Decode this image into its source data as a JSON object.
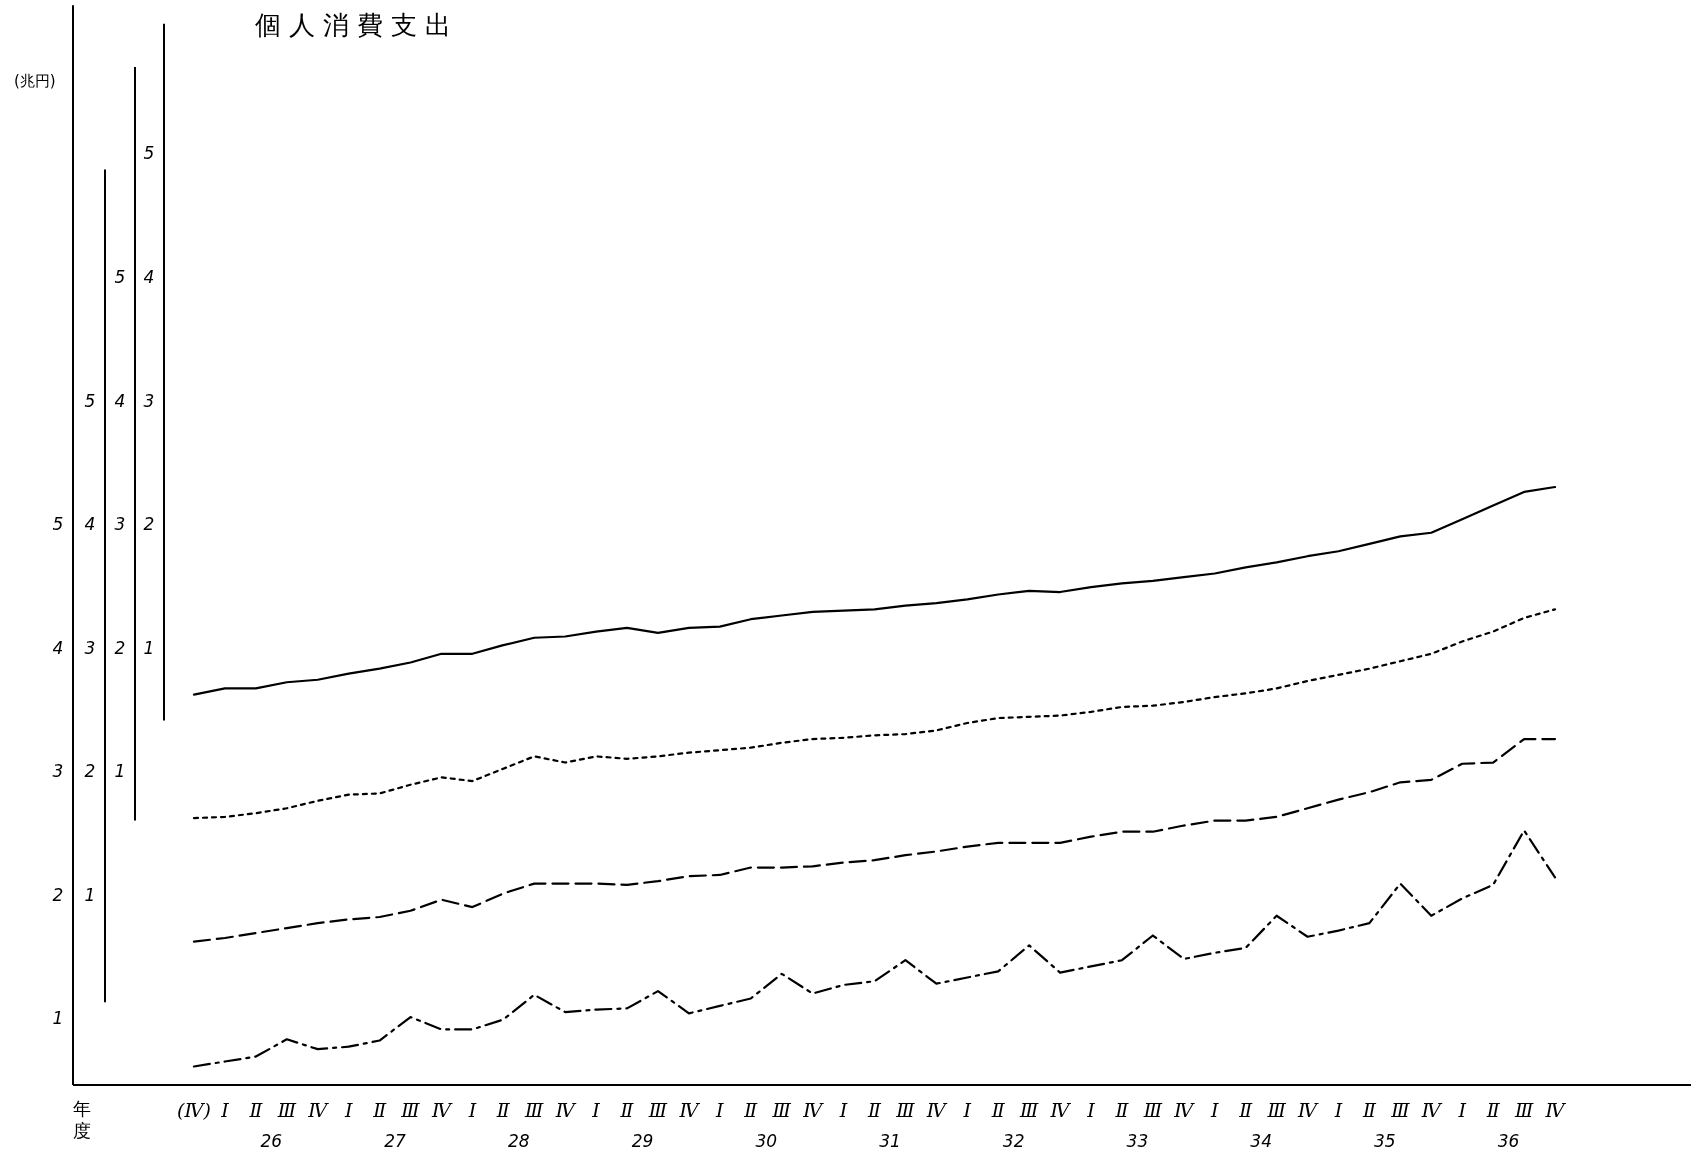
{
  "chart_data": [
    {
      "type": "line",
      "title": "個人消費支出",
      "ylabel": "(兆円)",
      "xlabel": "年度",
      "categories": [
        "(Ⅳ)",
        "Ⅰ",
        "Ⅱ",
        "Ⅲ",
        "Ⅳ",
        "Ⅰ",
        "Ⅱ",
        "Ⅲ",
        "Ⅳ",
        "Ⅰ",
        "Ⅱ",
        "Ⅲ",
        "Ⅳ",
        "Ⅰ",
        "Ⅱ",
        "Ⅲ",
        "Ⅳ",
        "Ⅰ",
        "Ⅱ",
        "Ⅲ",
        "Ⅳ",
        "Ⅰ",
        "Ⅱ",
        "Ⅲ",
        "Ⅳ",
        "Ⅰ",
        "Ⅱ",
        "Ⅲ",
        "Ⅳ",
        "Ⅰ",
        "Ⅱ",
        "Ⅲ",
        "Ⅳ",
        "Ⅰ",
        "Ⅱ",
        "Ⅲ",
        "Ⅳ",
        "Ⅰ",
        "Ⅱ",
        "Ⅲ",
        "Ⅳ",
        "Ⅰ",
        "Ⅱ",
        "Ⅲ",
        "Ⅳ"
      ],
      "series": [
        {
          "color": "#000000",
          "line_style": "dashdot",
          "values": [
            0.61,
            0.65,
            0.69,
            0.83,
            0.75,
            0.77,
            0.82,
            1.01,
            0.91,
            0.91,
            0.99,
            1.19,
            1.05,
            1.07,
            1.08,
            1.22,
            1.04,
            1.1,
            1.16,
            1.36,
            1.2,
            1.27,
            1.3,
            1.47,
            1.28,
            1.33,
            1.38,
            1.59,
            1.37,
            1.42,
            1.47,
            1.67,
            1.48,
            1.53,
            1.57,
            1.83,
            1.66,
            1.71,
            1.77,
            2.09,
            1.83,
            1.97,
            2.08,
            2.52,
            2.14
          ]
        }
      ],
      "ylim": [
        0.46,
        9.2
      ],
      "yticks": [
        1,
        2,
        3,
        4,
        5
      ],
      "annotations": [
        "26",
        "27",
        "28",
        "29",
        "30",
        "31",
        "32",
        "33",
        "34",
        "35",
        "36"
      ]
    },
    {
      "type": "line",
      "tick_labels": "y",
      "series": [
        {
          "color": "#000000",
          "line_style": "dashed",
          "values": [
            0.62,
            0.65,
            0.69,
            0.73,
            0.77,
            0.8,
            0.82,
            0.87,
            0.96,
            0.9,
            1.01,
            1.09,
            1.09,
            1.09,
            1.08,
            1.11,
            1.15,
            1.16,
            1.22,
            1.22,
            1.23,
            1.26,
            1.28,
            1.32,
            1.35,
            1.39,
            1.42,
            1.42,
            1.42,
            1.47,
            1.51,
            1.51,
            1.56,
            1.6,
            1.6,
            1.63,
            1.7,
            1.77,
            1.83,
            1.91,
            1.93,
            2.06,
            2.07,
            2.26,
            2.26
          ]
        }
      ],
      "ylim": [
        0.13,
        6.87
      ],
      "yticks": [
        1,
        2,
        3,
        4,
        5
      ]
    },
    {
      "type": "line",
      "tick_labels": "y",
      "series": [
        {
          "color": "#000000",
          "line_style": "dotted",
          "values": [
            0.62,
            0.63,
            0.66,
            0.7,
            0.76,
            0.81,
            0.82,
            0.89,
            0.95,
            0.92,
            1.02,
            1.12,
            1.07,
            1.12,
            1.1,
            1.12,
            1.15,
            1.17,
            1.19,
            1.23,
            1.26,
            1.27,
            1.29,
            1.3,
            1.33,
            1.39,
            1.43,
            1.44,
            1.45,
            1.48,
            1.52,
            1.53,
            1.56,
            1.6,
            1.63,
            1.67,
            1.73,
            1.78,
            1.83,
            1.89,
            1.95,
            2.05,
            2.13,
            2.24,
            2.31
          ]
        }
      ],
      "ylim": [
        0.6,
        6.7
      ],
      "yticks": [
        1,
        2,
        3,
        4,
        5
      ]
    },
    {
      "type": "line",
      "tick_labels": "y",
      "series": [
        {
          "color": "#000000",
          "line_style": "solid",
          "values": [
            0.62,
            0.67,
            0.67,
            0.72,
            0.74,
            0.79,
            0.83,
            0.88,
            0.95,
            0.95,
            1.02,
            1.08,
            1.09,
            1.13,
            1.16,
            1.12,
            1.16,
            1.17,
            1.23,
            1.26,
            1.29,
            1.3,
            1.31,
            1.34,
            1.36,
            1.39,
            1.43,
            1.46,
            1.45,
            1.49,
            1.52,
            1.54,
            1.57,
            1.6,
            1.65,
            1.69,
            1.74,
            1.78,
            1.84,
            1.9,
            1.93,
            2.04,
            2.15,
            2.26,
            2.3
          ]
        }
      ],
      "ylim": [
        0.41,
        6.05
      ],
      "yticks": [
        1,
        2,
        3,
        4,
        5
      ]
    }
  ]
}
